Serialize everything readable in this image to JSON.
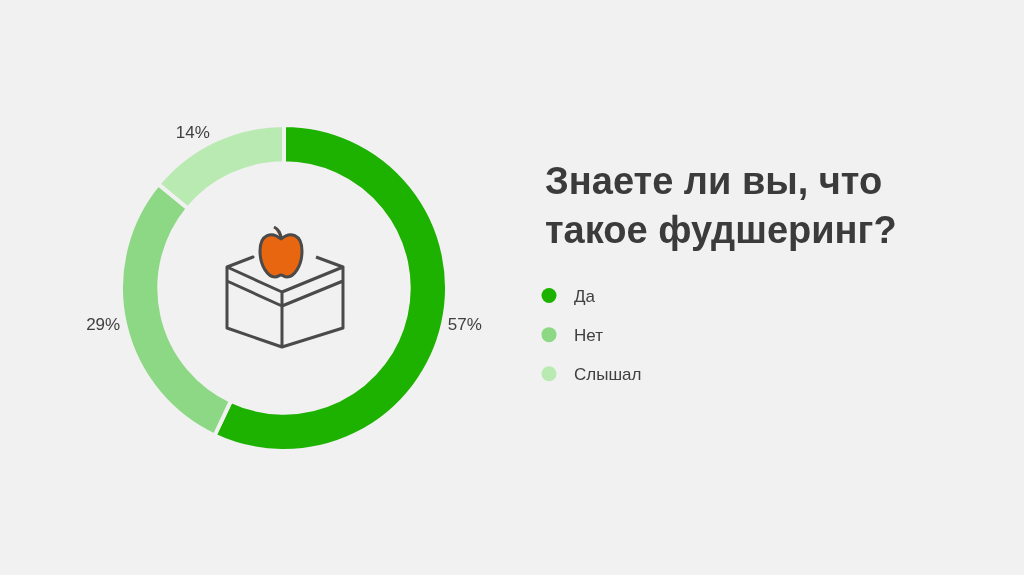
{
  "chart_data": {
    "type": "donut",
    "title": "Знаете ли вы, что такое фудшеринг?",
    "categories": [
      "Да",
      "Нет",
      "Слышал"
    ],
    "values": [
      57,
      29,
      14
    ],
    "colors": [
      "#1db100",
      "#8dd885",
      "#b9eab2"
    ],
    "value_labels": [
      "57%",
      "29%",
      "14%"
    ],
    "legend": "right"
  }
}
